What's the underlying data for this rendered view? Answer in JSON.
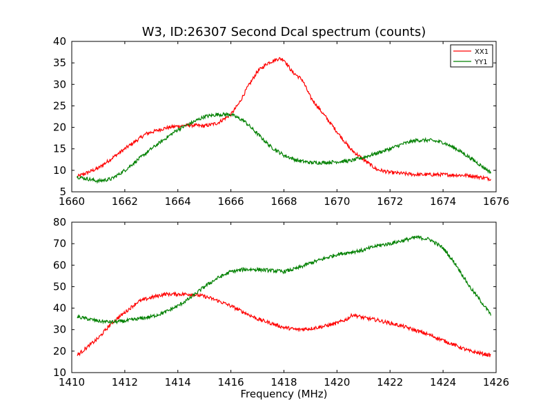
{
  "colors": {
    "xx1": "#ff0000",
    "yy1": "#008000",
    "axes": "#000000",
    "background": "#ffffff"
  },
  "chart_data": [
    {
      "type": "line",
      "title": "W3, ID:26307 Second Dcal spectrum (counts)",
      "xlabel": "",
      "ylabel": "",
      "xlim": [
        1660,
        1676
      ],
      "ylim": [
        5,
        40
      ],
      "xticks": [
        "1660",
        "1662",
        "1664",
        "1666",
        "1668",
        "1670",
        "1672",
        "1674",
        "1676"
      ],
      "yticks": [
        "5",
        "10",
        "15",
        "20",
        "25",
        "30",
        "35",
        "40"
      ],
      "grid": false,
      "legend": {
        "placement": "top-right",
        "entries": [
          "XX1",
          "YY1"
        ]
      },
      "x_range": [
        1660.2,
        1675.8
      ],
      "series": [
        {
          "name": "XX1",
          "color": "#ff0000",
          "x": [
            1660.2,
            1661.0,
            1662.0,
            1662.8,
            1663.5,
            1664.0,
            1664.5,
            1665.0,
            1665.5,
            1666.0,
            1666.3,
            1666.6,
            1667.0,
            1667.4,
            1667.8,
            1668.0,
            1668.3,
            1668.7,
            1669.0,
            1669.5,
            1670.0,
            1670.5,
            1671.0,
            1671.5,
            1672.0,
            1673.0,
            1674.0,
            1675.0,
            1675.8
          ],
          "y": [
            8.5,
            10.5,
            15,
            18.5,
            19.8,
            20.3,
            20.5,
            20.3,
            21,
            23,
            25.5,
            29,
            33,
            35,
            36,
            35.8,
            33,
            31,
            27,
            23,
            19,
            15,
            12.5,
            10.2,
            9.5,
            9,
            9,
            8.8,
            8
          ]
        },
        {
          "name": "YY1",
          "color": "#008000",
          "x": [
            1660.2,
            1661.0,
            1661.5,
            1662.0,
            1663.0,
            1664.0,
            1664.5,
            1665.0,
            1665.5,
            1666.0,
            1666.5,
            1667.0,
            1667.5,
            1668.0,
            1668.5,
            1669.0,
            1669.5,
            1670.0,
            1670.5,
            1671.0,
            1671.5,
            1672.0,
            1672.5,
            1673.0,
            1673.5,
            1674.0,
            1674.5,
            1675.0,
            1675.8
          ],
          "y": [
            8.5,
            7.5,
            8,
            10,
            15,
            19.5,
            21,
            22.5,
            23,
            23,
            21.5,
            18.5,
            15.5,
            13.5,
            12.3,
            11.8,
            11.8,
            12,
            12.2,
            13,
            14,
            15,
            16.2,
            17,
            17,
            16.5,
            15,
            13,
            9.5
          ]
        }
      ]
    },
    {
      "type": "line",
      "title": "",
      "xlabel": "Frequency (MHz)",
      "ylabel": "",
      "xlim": [
        1410,
        1426
      ],
      "ylim": [
        10,
        80
      ],
      "xticks": [
        "1410",
        "1412",
        "1414",
        "1416",
        "1418",
        "1420",
        "1422",
        "1424",
        "1426"
      ],
      "yticks": [
        "10",
        "20",
        "30",
        "40",
        "50",
        "60",
        "70",
        "80"
      ],
      "grid": false,
      "x_range": [
        1410.2,
        1425.8
      ],
      "series": [
        {
          "color": "#ff0000",
          "x": [
            1410.2,
            1410.5,
            1411.0,
            1411.5,
            1412.0,
            1412.5,
            1413.0,
            1413.5,
            1414.0,
            1414.5,
            1415.0,
            1415.5,
            1416.0,
            1416.5,
            1417.0,
            1417.5,
            1418.0,
            1418.5,
            1419.0,
            1419.5,
            1420.0,
            1420.4,
            1420.6,
            1421.0,
            1421.5,
            1422.0,
            1422.5,
            1423.0,
            1423.5,
            1424.0,
            1424.5,
            1425.0,
            1425.8
          ],
          "y": [
            18,
            21,
            26,
            33,
            38,
            43,
            45,
            46.5,
            46.5,
            46.5,
            45.5,
            43.5,
            41,
            38,
            35,
            33,
            31,
            30,
            30.5,
            31.5,
            33,
            35,
            37,
            35.5,
            34.5,
            33,
            31.5,
            29.5,
            27.5,
            25,
            22.5,
            20,
            18
          ]
        },
        {
          "color": "#008000",
          "x": [
            1410.2,
            1411.0,
            1411.5,
            1412.0,
            1412.5,
            1413.0,
            1413.5,
            1414.0,
            1414.5,
            1415.0,
            1415.5,
            1416.0,
            1416.5,
            1417.0,
            1417.5,
            1418.0,
            1418.5,
            1419.0,
            1419.5,
            1420.0,
            1420.5,
            1421.0,
            1421.5,
            1422.0,
            1422.5,
            1423.0,
            1423.5,
            1424.0,
            1424.5,
            1425.0,
            1425.5,
            1425.8
          ],
          "y": [
            36,
            34,
            33.5,
            34,
            35,
            36,
            38,
            41,
            45,
            50,
            54,
            57,
            58,
            58,
            57.5,
            57,
            58.5,
            61,
            63,
            65,
            66,
            67,
            69,
            70,
            71.5,
            73,
            72,
            68,
            60,
            50,
            42,
            37
          ]
        }
      ]
    }
  ]
}
